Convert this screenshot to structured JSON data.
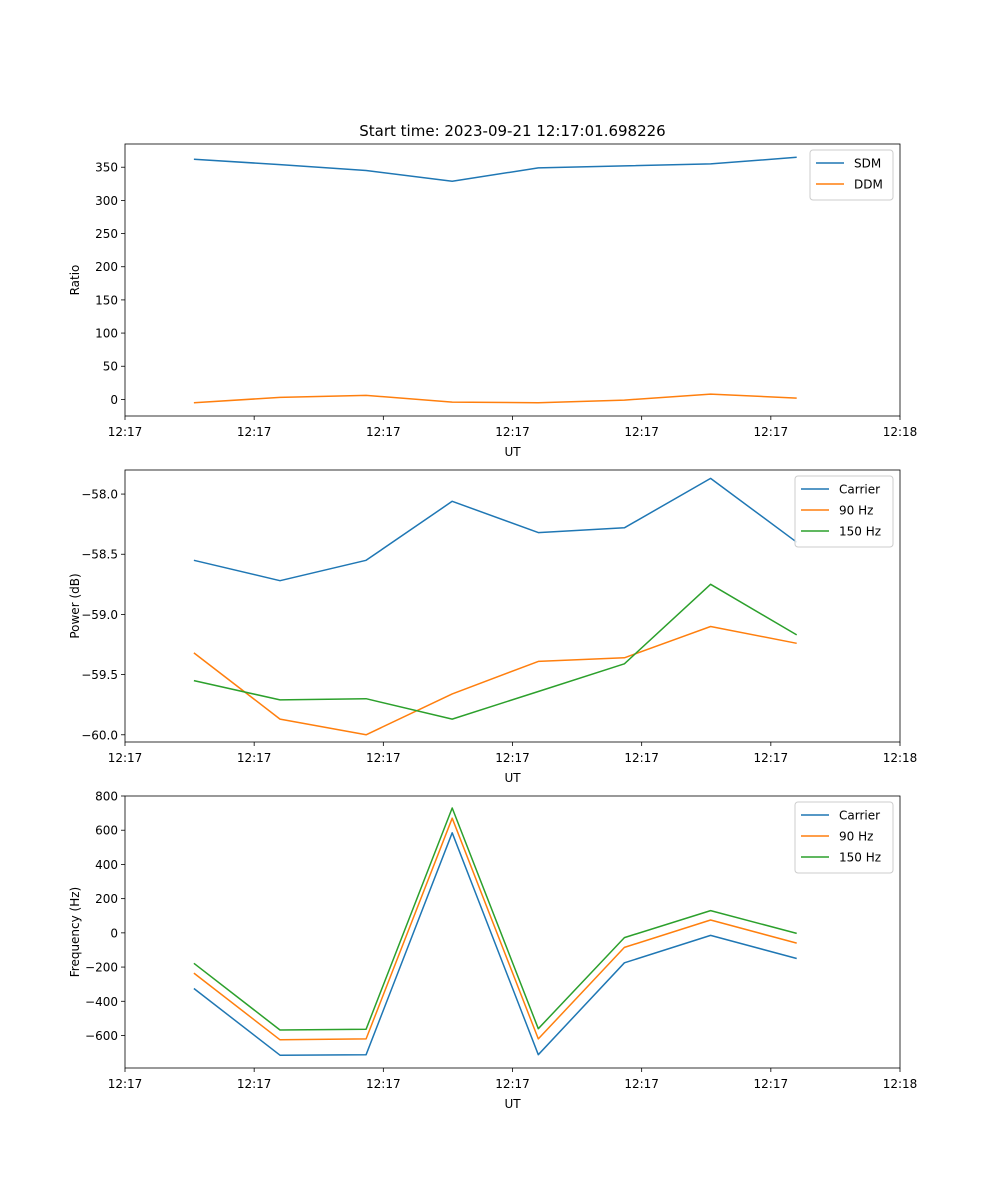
{
  "title": "Start time: 2023-09-21 12:17:01.698226",
  "colors": {
    "blue": "#1f77b4",
    "orange": "#ff7f0e",
    "green": "#2ca02c"
  },
  "chart_data": [
    {
      "type": "line",
      "title": "Start time: 2023-09-21 12:17:01.698226",
      "xlabel": "UT",
      "ylabel": "Ratio",
      "x": [
        1,
        2,
        3,
        4,
        5,
        6,
        7,
        8
      ],
      "xlim": [
        0.2,
        9.2
      ],
      "x_ticks": [
        {
          "pos": 0.2,
          "label": "12:17"
        },
        {
          "pos": 1.7,
          "label": "12:17"
        },
        {
          "pos": 3.2,
          "label": "12:17"
        },
        {
          "pos": 4.7,
          "label": "12:17"
        },
        {
          "pos": 6.2,
          "label": "12:17"
        },
        {
          "pos": 7.7,
          "label": "12:17"
        },
        {
          "pos": 9.2,
          "label": "12:18"
        }
      ],
      "ylim": [
        -25,
        385
      ],
      "y_ticks": [
        {
          "val": 0,
          "label": "0"
        },
        {
          "val": 50,
          "label": "50"
        },
        {
          "val": 100,
          "label": "100"
        },
        {
          "val": 150,
          "label": "150"
        },
        {
          "val": 200,
          "label": "200"
        },
        {
          "val": 250,
          "label": "250"
        },
        {
          "val": 300,
          "label": "300"
        },
        {
          "val": 350,
          "label": "350"
        }
      ],
      "legend": "top-right",
      "series": [
        {
          "name": "SDM",
          "color": "#1f77b4",
          "values": [
            362,
            354,
            345,
            329,
            349,
            352,
            355,
            365
          ]
        },
        {
          "name": "DDM",
          "color": "#ff7f0e",
          "values": [
            -5,
            3,
            6,
            -4,
            -5,
            -1,
            8,
            2
          ]
        }
      ]
    },
    {
      "type": "line",
      "title": "",
      "xlabel": "UT",
      "ylabel": "Power (dB)",
      "x": [
        1,
        2,
        3,
        4,
        5,
        6,
        7,
        8
      ],
      "xlim": [
        0.2,
        9.2
      ],
      "x_ticks": [
        {
          "pos": 0.2,
          "label": "12:17"
        },
        {
          "pos": 1.7,
          "label": "12:17"
        },
        {
          "pos": 3.2,
          "label": "12:17"
        },
        {
          "pos": 4.7,
          "label": "12:17"
        },
        {
          "pos": 6.2,
          "label": "12:17"
        },
        {
          "pos": 7.7,
          "label": "12:17"
        },
        {
          "pos": 9.2,
          "label": "12:18"
        }
      ],
      "ylim": [
        -60.06,
        -57.8
      ],
      "y_ticks": [
        {
          "val": -60.0,
          "label": "−60.0"
        },
        {
          "val": -59.5,
          "label": "−59.5"
        },
        {
          "val": -59.0,
          "label": "−59.0"
        },
        {
          "val": -58.5,
          "label": "−58.5"
        },
        {
          "val": -58.0,
          "label": "−58.0"
        }
      ],
      "legend": "top-right",
      "series": [
        {
          "name": "Carrier",
          "color": "#1f77b4",
          "values": [
            -58.55,
            -58.72,
            -58.55,
            -58.06,
            -58.32,
            -58.28,
            -57.87,
            -58.4
          ]
        },
        {
          "name": "90 Hz",
          "color": "#ff7f0e",
          "values": [
            -59.32,
            -59.87,
            -60.0,
            -59.66,
            -59.39,
            -59.36,
            -59.1,
            -59.24
          ]
        },
        {
          "name": "150 Hz",
          "color": "#2ca02c",
          "values": [
            -59.55,
            -59.71,
            -59.7,
            -59.87,
            -59.64,
            -59.41,
            -58.75,
            -59.17
          ]
        }
      ]
    },
    {
      "type": "line",
      "title": "",
      "xlabel": "UT",
      "ylabel": "Frequency (Hz)",
      "x": [
        1,
        2,
        3,
        4,
        5,
        6,
        7,
        8
      ],
      "xlim": [
        0.2,
        9.2
      ],
      "x_ticks": [
        {
          "pos": 0.2,
          "label": "12:17"
        },
        {
          "pos": 1.7,
          "label": "12:17"
        },
        {
          "pos": 3.2,
          "label": "12:17"
        },
        {
          "pos": 4.7,
          "label": "12:17"
        },
        {
          "pos": 6.2,
          "label": "12:17"
        },
        {
          "pos": 7.7,
          "label": "12:17"
        },
        {
          "pos": 9.2,
          "label": "12:18"
        }
      ],
      "ylim": [
        -790,
        800
      ],
      "y_ticks": [
        {
          "val": -600,
          "label": "−600"
        },
        {
          "val": -400,
          "label": "−400"
        },
        {
          "val": -200,
          "label": "−200"
        },
        {
          "val": 0,
          "label": "0"
        },
        {
          "val": 200,
          "label": "200"
        },
        {
          "val": 400,
          "label": "400"
        },
        {
          "val": 600,
          "label": "600"
        },
        {
          "val": 800,
          "label": "800"
        }
      ],
      "legend": "top-right",
      "series": [
        {
          "name": "Carrier",
          "color": "#1f77b4",
          "values": [
            -325,
            -715,
            -712,
            585,
            -712,
            -175,
            -15,
            -150
          ]
        },
        {
          "name": "90 Hz",
          "color": "#ff7f0e",
          "values": [
            -235,
            -625,
            -620,
            670,
            -620,
            -85,
            75,
            -60
          ]
        },
        {
          "name": "150 Hz",
          "color": "#2ca02c",
          "values": [
            -178,
            -568,
            -563,
            730,
            -560,
            -28,
            130,
            -3
          ]
        }
      ]
    }
  ]
}
